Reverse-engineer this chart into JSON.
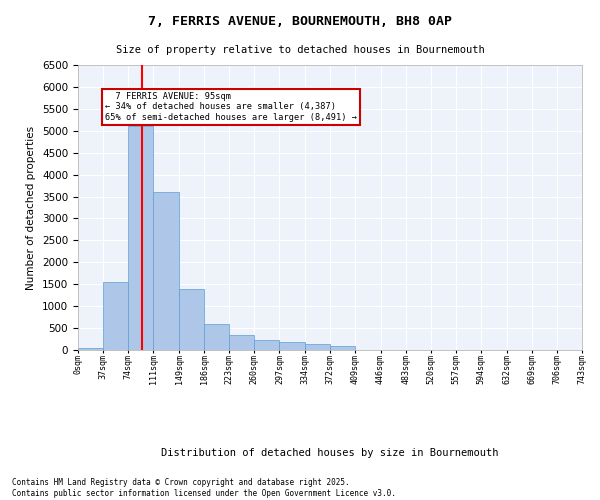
{
  "title_line1": "7, FERRIS AVENUE, BOURNEMOUTH, BH8 0AP",
  "title_line2": "Size of property relative to detached houses in Bournemouth",
  "xlabel": "Distribution of detached houses by size in Bournemouth",
  "ylabel": "Number of detached properties",
  "property_size": 95,
  "property_label": "7 FERRIS AVENUE: 95sqm",
  "pct_smaller": 34,
  "count_smaller": 4387,
  "pct_larger": 65,
  "count_larger": 8491,
  "bin_edges": [
    0,
    37,
    74,
    111,
    149,
    186,
    223,
    260,
    297,
    334,
    372,
    409,
    446,
    483,
    520,
    557,
    594,
    632,
    669,
    706,
    743
  ],
  "bar_heights": [
    50,
    1550,
    5100,
    3600,
    1400,
    600,
    350,
    230,
    180,
    130,
    90,
    0,
    0,
    0,
    0,
    0,
    0,
    0,
    0,
    0
  ],
  "bar_color": "#aec6e8",
  "bar_edge_color": "#5a9fd4",
  "red_line_x": 95,
  "ylim": [
    0,
    6500
  ],
  "yticks": [
    0,
    500,
    1000,
    1500,
    2000,
    2500,
    3000,
    3500,
    4000,
    4500,
    5000,
    5500,
    6000,
    6500
  ],
  "background_color": "#eef3fb",
  "grid_color": "#ffffff",
  "annotation_box_color": "#cc0000",
  "footer_line1": "Contains HM Land Registry data © Crown copyright and database right 2025.",
  "footer_line2": "Contains public sector information licensed under the Open Government Licence v3.0."
}
